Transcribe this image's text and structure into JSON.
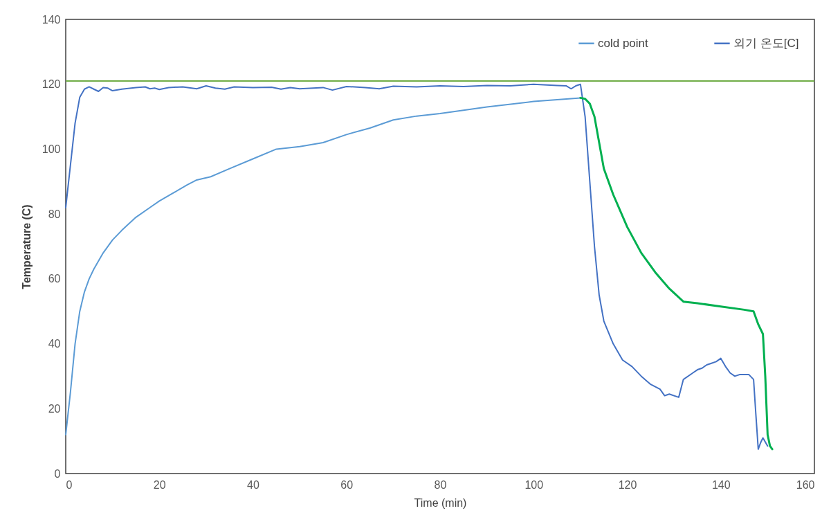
{
  "chart_data": {
    "type": "line",
    "xlabel": "Time (min)",
    "ylabel": "Temperature (C)",
    "xlim": [
      0,
      160
    ],
    "xticks": [
      0,
      20,
      40,
      60,
      80,
      100,
      120,
      140,
      160
    ],
    "ylim": [
      0,
      140
    ],
    "yticks": [
      0,
      20,
      40,
      60,
      80,
      100,
      120,
      140
    ],
    "grid": false,
    "legend": "top right",
    "line_style": "solid",
    "marker": "none",
    "ref_lines": [
      {
        "axis": "y",
        "value": 121,
        "color": "#70ad47"
      }
    ],
    "series": [
      {
        "name": "cold point",
        "color": "#5b9bd5",
        "x": [
          0,
          1,
          2,
          3,
          4,
          5,
          6,
          8,
          10,
          12,
          15,
          18,
          20,
          23,
          26,
          28,
          31,
          35,
          40,
          45,
          50,
          55,
          60,
          65,
          70,
          75,
          80,
          90,
          100,
          110
        ],
        "values": [
          12,
          25,
          40,
          50,
          56,
          60,
          63,
          68,
          72,
          75,
          79,
          82,
          84,
          86.5,
          89,
          90.5,
          91.5,
          94,
          97,
          100,
          100.8,
          102,
          104.5,
          106.5,
          109,
          110.2,
          111,
          113,
          114.7,
          115.8
        ]
      },
      {
        "name": "외기 온도[C]",
        "color": "#4472c4",
        "x": [
          0,
          1,
          2,
          3,
          4,
          5,
          6,
          7,
          8,
          9,
          10,
          12,
          15,
          17,
          18,
          19,
          20,
          22,
          25,
          28,
          30,
          32,
          34,
          36,
          40,
          44,
          46,
          48,
          50,
          55,
          57,
          60,
          64,
          67,
          70,
          75,
          80,
          85,
          90,
          95,
          100,
          105,
          107,
          108,
          109,
          110,
          111,
          112,
          113,
          114,
          115,
          117,
          119,
          121,
          123,
          125,
          127,
          128,
          129,
          131,
          132,
          134,
          135,
          136,
          137,
          138,
          139,
          140,
          141,
          142,
          143,
          144,
          146,
          147,
          147.5,
          148,
          148.5,
          149,
          150
        ],
        "values": [
          82,
          95,
          108,
          116,
          118.5,
          119.2,
          118.5,
          117.8,
          119,
          118.8,
          118,
          118.5,
          119,
          119.2,
          118.6,
          118.8,
          118.4,
          119,
          119.2,
          118.6,
          119.5,
          118.8,
          118.5,
          119.2,
          119,
          119.1,
          118.5,
          119,
          118.6,
          119,
          118.2,
          119.3,
          119,
          118.6,
          119.4,
          119.2,
          119.5,
          119.3,
          119.6,
          119.5,
          120,
          119.6,
          119.5,
          118.6,
          119.5,
          120,
          110,
          90,
          70,
          55,
          47,
          40,
          35,
          33,
          30,
          27.5,
          26,
          24,
          24.5,
          23.5,
          29,
          31,
          32,
          32.5,
          33.5,
          34,
          34.5,
          35.5,
          33,
          31,
          30,
          30.5,
          30.5,
          29,
          18,
          7.5,
          9.5,
          11,
          8.5
        ]
      },
      {
        "color": "#00b050",
        "x": [
          110,
          111,
          112,
          113,
          114,
          115,
          117,
          120,
          123,
          126,
          129,
          132,
          135,
          140,
          145,
          147,
          148,
          149,
          149.5,
          150,
          150.5,
          151
        ],
        "values": [
          115.8,
          115.5,
          114,
          110,
          102,
          94,
          86,
          76,
          68,
          62,
          57,
          53,
          52.5,
          51.5,
          50.5,
          50,
          46,
          43,
          30,
          12,
          8.5,
          7.5
        ]
      }
    ]
  }
}
